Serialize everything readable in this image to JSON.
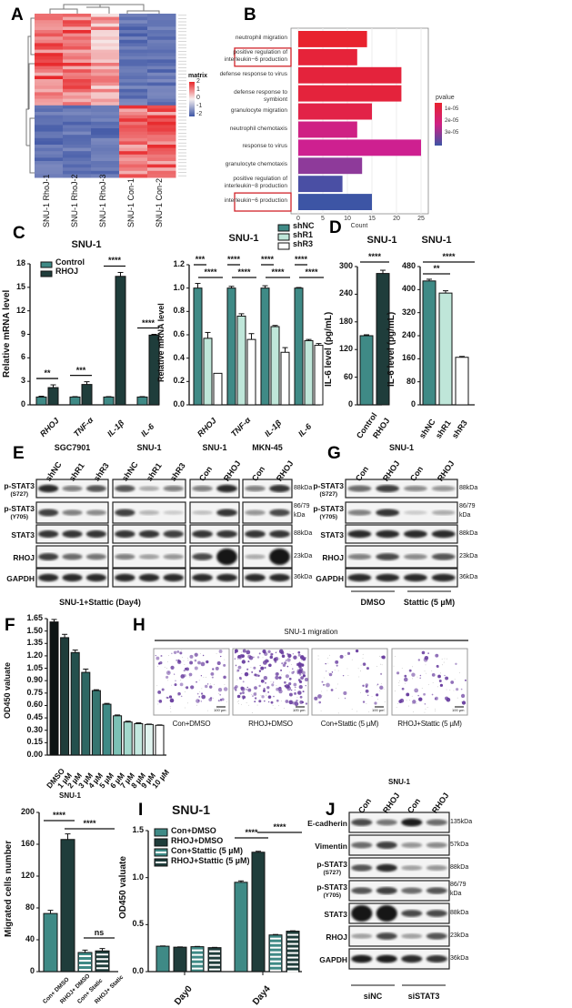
{
  "panels": {
    "a": "A",
    "b": "B",
    "c": "C",
    "d": "D",
    "e": "E",
    "f": "F",
    "g": "G",
    "h": "H",
    "i": "I",
    "j": "J"
  },
  "heatmap": {
    "columns": [
      "SNU-1 RhoJ-1",
      "SNU-1 RhoJ-2",
      "SNU-1 RhoJ-3",
      "SNU-1 Con-1",
      "SNU-1 Con-2"
    ],
    "legend_title": "matrix",
    "legend_ticks": [
      "2",
      "1",
      "0",
      "-1",
      "-2"
    ],
    "colors": {
      "high": "#e8272a",
      "mid": "#f7f0f0",
      "low": "#3d55a5"
    }
  },
  "chart_data": [
    {
      "type": "bar",
      "id": "go",
      "orientation": "horizontal",
      "categories": [
        "neutrophil migration",
        "positive regulation of interleukin−6 production",
        "defense response to virus",
        "defense response to symbiont",
        "granulocyte migration",
        "neutrophil chemotaxis",
        "response to virus",
        "granulocyte chemotaxis",
        "positive regulation of interleukin−8 production",
        "interleukin−6 production"
      ],
      "values": [
        14,
        12,
        21,
        21,
        15,
        12,
        25,
        13,
        9,
        15
      ],
      "pvalue_colors": [
        "#e8232e",
        "#e6233a",
        "#e4233c",
        "#e4233c",
        "#e22348",
        "#cf2184",
        "#ce2090",
        "#8e3a9a",
        "#4a4fa4",
        "#3d55a5"
      ],
      "highlighted": [
        1,
        9
      ],
      "xlabel": "Count",
      "xticks": [
        "0",
        "5",
        "10",
        "15",
        "20",
        "25"
      ],
      "xlim": [
        0,
        26
      ],
      "legend_title": "pvalue",
      "legend_ticks": [
        "1e-05",
        "2e-05",
        "3e-05"
      ],
      "grid": true
    },
    {
      "type": "bar",
      "id": "c1",
      "title": "SNU-1",
      "ylabel": "Relative mRNA level",
      "categories": [
        "RHOJ",
        "TNF-α",
        "IL-1β",
        "IL-6"
      ],
      "ylim": [
        0,
        18
      ],
      "yticks": [
        "0",
        "3",
        "6",
        "9",
        "12",
        "15",
        "18"
      ],
      "series": [
        {
          "name": "Control",
          "values": [
            1.0,
            1.0,
            1.0,
            1.0
          ],
          "errors": [
            0.1,
            0.05,
            0.05,
            0.05
          ],
          "color": "#3f8a86"
        },
        {
          "name": "RHOJ",
          "values": [
            2.2,
            2.6,
            16.4,
            8.9
          ],
          "errors": [
            0.35,
            0.35,
            0.5,
            0.1
          ],
          "color": "#1f3d3b"
        }
      ],
      "significance": [
        "**",
        "***",
        "****",
        "****"
      ]
    },
    {
      "type": "bar",
      "id": "c2",
      "title": "SNU-1",
      "ylabel": "Relative mRNA level",
      "categories": [
        "RHOJ",
        "TNF-α",
        "IL-1β",
        "IL-6"
      ],
      "ylim": [
        0,
        1.2
      ],
      "yticks": [
        "0.0",
        "0.2",
        "0.4",
        "0.6",
        "0.8",
        "1.0",
        "1.2"
      ],
      "series": [
        {
          "name": "shNC",
          "values": [
            1.0,
            1.0,
            1.0,
            1.0
          ],
          "errors": [
            0.04,
            0.015,
            0.02,
            0.005
          ],
          "color": "#3f8a86"
        },
        {
          "name": "shR1",
          "values": [
            0.57,
            0.76,
            0.67,
            0.55
          ],
          "errors": [
            0.05,
            0.02,
            0.01,
            0.01
          ],
          "color": "#bfe6d9"
        },
        {
          "name": "shR3",
          "values": [
            0.27,
            0.56,
            0.45,
            0.51
          ],
          "errors": [
            0.0,
            0.05,
            0.04,
            0.015
          ],
          "color": "#ffffff"
        }
      ],
      "significance": [
        [
          "***",
          "****"
        ],
        [
          "****",
          "****"
        ],
        [
          "****",
          "****"
        ],
        [
          "****",
          "****"
        ]
      ]
    },
    {
      "type": "bar",
      "id": "d1",
      "title": "SNU-1",
      "ylabel": "IL-6 level (pg/mL)",
      "categories": [
        "Control",
        "RHOJ"
      ],
      "ylim": [
        0,
        300
      ],
      "yticks": [
        "0",
        "60",
        "120",
        "180",
        "240",
        "300"
      ],
      "values": [
        150,
        285
      ],
      "errors": [
        2,
        7
      ],
      "colors": [
        "#3f8a86",
        "#1f3d3b"
      ],
      "significance": [
        "****"
      ]
    },
    {
      "type": "bar",
      "id": "d2",
      "title": "SNU-1",
      "ylabel": "IL-6 level (pg/mL)",
      "categories": [
        "shNC",
        "shR1",
        "shR3"
      ],
      "ylim": [
        0,
        480
      ],
      "yticks": [
        "0",
        "80",
        "160",
        "240",
        "320",
        "400",
        "480"
      ],
      "values": [
        430,
        388,
        165
      ],
      "errors": [
        6,
        8,
        3
      ],
      "colors": [
        "#3f8a86",
        "#bfe6d9",
        "#ffffff"
      ],
      "significance": [
        "**",
        "****"
      ]
    },
    {
      "type": "bar",
      "id": "f",
      "title": "SNU-1+Stattic (Day4)",
      "ylabel": "OD450 valuate",
      "categories": [
        "DMSO",
        "1 µM",
        "2 µM",
        "3 µM",
        "4 µM",
        "5 µM",
        "6 µM",
        "7 µM",
        "8 µM",
        "9 µM",
        "10 µM"
      ],
      "ylim": [
        0,
        1.65
      ],
      "yticks": [
        "0.00",
        "0.15",
        "0.30",
        "0.45",
        "0.60",
        "0.75",
        "0.90",
        "1.05",
        "1.20",
        "1.35",
        "1.50",
        "1.65"
      ],
      "values": [
        1.61,
        1.42,
        1.24,
        1.0,
        0.78,
        0.615,
        0.475,
        0.4,
        0.38,
        0.37,
        0.36
      ],
      "errors": [
        0.03,
        0.04,
        0.03,
        0.04,
        0.01,
        0.01,
        0.01,
        0.01,
        0.01,
        0.005,
        0.005
      ],
      "colors": [
        "#0d1414",
        "#1f3d3b",
        "#24504d",
        "#2e6763",
        "#357570",
        "#3f8a86",
        "#7cc1b5",
        "#a3d8cc",
        "#c3e8df",
        "#e0f3ee",
        "#ffffff"
      ]
    },
    {
      "type": "bar",
      "id": "mig",
      "title": "SNU-1",
      "ylabel": "Migrated cells number",
      "overlay_label": "OD450 valuate",
      "categories": [
        "Con+ DMSO",
        "RHOJ+ DMSO",
        "Con+ Static",
        "RHOJ+ Static"
      ],
      "ylim": [
        0,
        200
      ],
      "yticks": [
        "0",
        "40",
        "80",
        "120",
        "160",
        "200"
      ],
      "values": [
        73,
        166,
        24,
        26
      ],
      "errors": [
        4,
        7,
        3,
        3
      ],
      "colors": [
        "#3f8a86",
        "#1f3d3b",
        "#3f8a86",
        "#1f3d3b"
      ],
      "striped": [
        false,
        false,
        true,
        true
      ],
      "significance": [
        "****",
        "****",
        "ns"
      ]
    },
    {
      "type": "bar",
      "id": "i",
      "title": "SNU-1",
      "categories": [
        "Day0",
        "Day4"
      ],
      "ylim": [
        0,
        1.5
      ],
      "yticks": [
        "0.0",
        "0.5",
        "1.0",
        "1.5"
      ],
      "series": [
        {
          "name": "Con+DMSO",
          "values": [
            0.27,
            0.95
          ],
          "errors": [
            0.003,
            0.015
          ],
          "color": "#3f8a86",
          "striped": false
        },
        {
          "name": "RHOJ+DMSO",
          "values": [
            0.26,
            1.27
          ],
          "errors": [
            0.003,
            0.01
          ],
          "color": "#1f3d3b",
          "striped": false
        },
        {
          "name": "Con+Stattic (5 µM)",
          "values": [
            0.265,
            0.39
          ],
          "errors": [
            0.003,
            0.005
          ],
          "color": "#3f8a86",
          "striped": true
        },
        {
          "name": "RHOJ+Stattic (5 µM)",
          "values": [
            0.255,
            0.43
          ],
          "errors": [
            0.003,
            0.004
          ],
          "color": "#1f3d3b",
          "striped": true
        }
      ],
      "significance": [
        "****",
        "****"
      ]
    }
  ],
  "blot_e": {
    "groups": [
      {
        "cell": "SGC7901",
        "lanes": [
          "shNC",
          "shR1",
          "shR3"
        ]
      },
      {
        "cell": "SNU-1",
        "lanes": [
          "shNC",
          "shR1",
          "shR3"
        ]
      },
      {
        "cell": "SNU-1",
        "lanes": [
          "Con",
          "RHOJ"
        ]
      },
      {
        "cell": "MKN-45",
        "lanes": [
          "Con",
          "RHOJ"
        ]
      }
    ],
    "rows": [
      {
        "label": "p-STAT3",
        "sub": "(S727)",
        "kda": "88kDa",
        "bands": [
          [
            0.9,
            0.5,
            0.7
          ],
          [
            0.7,
            0.3,
            0.5
          ],
          [
            0.5,
            0.9
          ],
          [
            0.5,
            0.85
          ]
        ]
      },
      {
        "label": "p-STAT3",
        "sub": "(Y705)",
        "kda": "86/79 kDa",
        "bands": [
          [
            0.8,
            0.5,
            0.45
          ],
          [
            0.8,
            0.25,
            0.15
          ],
          [
            0.2,
            0.85
          ],
          [
            0.4,
            0.75
          ]
        ]
      },
      {
        "label": "STAT3",
        "sub": "",
        "kda": "88kDa",
        "bands": [
          [
            0.85,
            0.85,
            0.85
          ],
          [
            0.85,
            0.85,
            0.8
          ],
          [
            0.85,
            0.85
          ],
          [
            0.85,
            0.85
          ]
        ]
      },
      {
        "label": "RHOJ",
        "sub": "",
        "kda": "23kDa",
        "bands": [
          [
            0.8,
            0.6,
            0.55
          ],
          [
            0.5,
            0.35,
            0.4
          ],
          [
            0.75,
            1.0
          ],
          [
            0.3,
            1.0
          ]
        ]
      },
      {
        "label": "GAPDH",
        "sub": "",
        "kda": "36kDa",
        "bands": [
          [
            0.9,
            0.9,
            0.9
          ],
          [
            0.9,
            0.9,
            0.9
          ],
          [
            0.9,
            0.9
          ],
          [
            0.9,
            0.9
          ]
        ]
      }
    ]
  },
  "blot_g": {
    "title": "SNU-1",
    "lanes": [
      "Con",
      "RHOJ",
      "Con",
      "RHOJ"
    ],
    "treatments": [
      "DMSO",
      "Stattic (5 µM)"
    ],
    "rows": [
      {
        "label": "p-STAT3",
        "sub": "(S727)",
        "kda": "88kDa",
        "bands": [
          0.6,
          0.8,
          0.45,
          0.4
        ]
      },
      {
        "label": "p-STAT3",
        "sub": "(Y705)",
        "kda": "86/79 kDa",
        "bands": [
          0.5,
          0.85,
          0.15,
          0.3
        ]
      },
      {
        "label": "STAT3",
        "sub": "",
        "kda": "88kDa",
        "bands": [
          0.9,
          0.9,
          0.9,
          0.9
        ]
      },
      {
        "label": "RHOJ",
        "sub": "",
        "kda": "23kDa",
        "bands": [
          0.5,
          0.75,
          0.45,
          0.7
        ]
      },
      {
        "label": "GAPDH",
        "sub": "",
        "kda": "36kDa",
        "bands": [
          0.9,
          0.9,
          0.9,
          0.9
        ]
      }
    ]
  },
  "migration": {
    "title": "SNU-1 migration",
    "images": [
      "Con+DMSO",
      "RHOJ+DMSO",
      "Con+Stattic (5 µM)",
      "RHOJ+Stattic (5 µM)"
    ],
    "density": [
      0.45,
      1.0,
      0.2,
      0.25
    ],
    "scale_bar": "100 µm",
    "stain_color": "#6a3fa0"
  },
  "blot_j": {
    "title": "SNU-1",
    "lanes": [
      "Con",
      "RHOJ",
      "Con",
      "RHOJ"
    ],
    "treatments": [
      "siNC",
      "siSTAT3"
    ],
    "rows": [
      {
        "label": "E-cadherin",
        "sub": "",
        "kda": "135kDa",
        "bands": [
          0.75,
          0.55,
          0.95,
          0.6
        ]
      },
      {
        "label": "Vimentin",
        "sub": "",
        "kda": "57kDa",
        "bands": [
          0.6,
          0.8,
          0.4,
          0.45
        ]
      },
      {
        "label": "p-STAT3",
        "sub": "(S727)",
        "kda": "88kDa",
        "bands": [
          0.7,
          0.9,
          0.35,
          0.4
        ]
      },
      {
        "label": "p-STAT3",
        "sub": "(Y705)",
        "kda": "86/79 kDa",
        "bands": [
          0.7,
          0.8,
          0.6,
          0.7
        ]
      },
      {
        "label": "STAT3",
        "sub": "",
        "kda": "88kDa",
        "bands": [
          1.0,
          1.0,
          0.75,
          0.75
        ]
      },
      {
        "label": "RHOJ",
        "sub": "",
        "kda": "23kDa",
        "bands": [
          0.35,
          0.75,
          0.35,
          0.7
        ]
      },
      {
        "label": "GAPDH",
        "sub": "",
        "kda": "36kDa",
        "bands": [
          0.95,
          0.95,
          0.9,
          0.85
        ]
      }
    ]
  }
}
